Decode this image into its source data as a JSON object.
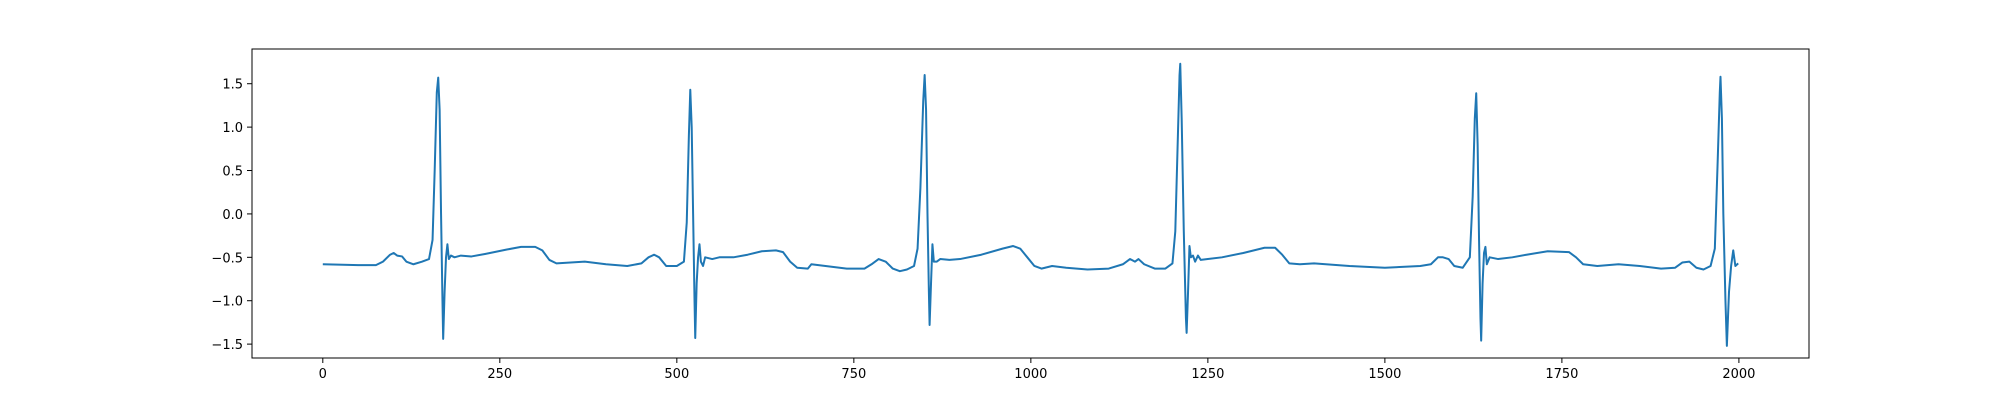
{
  "chart_data": {
    "type": "line",
    "x": [
      0,
      50,
      75,
      85,
      95,
      100,
      105,
      112,
      118,
      128,
      140,
      150,
      155,
      158,
      161,
      163,
      165,
      167,
      169,
      170,
      172,
      174,
      176,
      178,
      181,
      186,
      195,
      210,
      230,
      260,
      280,
      300,
      310,
      320,
      330,
      350,
      370,
      400,
      430,
      450,
      460,
      468,
      475,
      485,
      500,
      510,
      514,
      517,
      519,
      521,
      523,
      525,
      526,
      528,
      530,
      532,
      534,
      537,
      540,
      550,
      560,
      580,
      600,
      620,
      640,
      650,
      660,
      670,
      685,
      690,
      710,
      740,
      765,
      775,
      785,
      795,
      805,
      815,
      825,
      835,
      840,
      844,
      848,
      850,
      852,
      854,
      856,
      857,
      859,
      861,
      863,
      867,
      872,
      885,
      900,
      930,
      960,
      975,
      985,
      995,
      1005,
      1015,
      1030,
      1050,
      1080,
      1110,
      1130,
      1140,
      1147,
      1152,
      1160,
      1175,
      1190,
      1200,
      1204,
      1207,
      1210,
      1211,
      1213,
      1216,
      1219,
      1220,
      1222,
      1224,
      1226,
      1229,
      1232,
      1236,
      1240,
      1250,
      1270,
      1300,
      1330,
      1345,
      1355,
      1365,
      1380,
      1400,
      1450,
      1500,
      1550,
      1565,
      1575,
      1582,
      1590,
      1598,
      1610,
      1620,
      1624,
      1627,
      1629,
      1631,
      1633,
      1635,
      1636,
      1638,
      1640,
      1642,
      1644,
      1648,
      1660,
      1680,
      1700,
      1730,
      1760,
      1770,
      1780,
      1800,
      1830,
      1860,
      1890,
      1910,
      1920,
      1930,
      1940,
      1950,
      1960,
      1966,
      1970,
      1973,
      1974,
      1976,
      1978,
      1981,
      1983,
      1986,
      1989,
      1992,
      1995,
      1999
    ],
    "series": [
      {
        "color": "#1f77b4",
        "values": [
          -0.58,
          -0.59,
          -0.59,
          -0.55,
          -0.47,
          -0.45,
          -0.48,
          -0.49,
          -0.55,
          -0.58,
          -0.55,
          -0.52,
          -0.3,
          0.5,
          1.4,
          1.57,
          1.2,
          0.0,
          -1.0,
          -1.44,
          -0.9,
          -0.5,
          -0.35,
          -0.52,
          -0.48,
          -0.5,
          -0.48,
          -0.49,
          -0.46,
          -0.41,
          -0.38,
          -0.38,
          -0.42,
          -0.53,
          -0.57,
          -0.56,
          -0.55,
          -0.58,
          -0.6,
          -0.57,
          -0.5,
          -0.47,
          -0.5,
          -0.6,
          -0.6,
          -0.55,
          -0.1,
          0.9,
          1.43,
          1.0,
          0.0,
          -1.0,
          -1.43,
          -0.8,
          -0.5,
          -0.35,
          -0.55,
          -0.6,
          -0.5,
          -0.52,
          -0.5,
          -0.5,
          -0.47,
          -0.43,
          -0.42,
          -0.44,
          -0.55,
          -0.62,
          -0.63,
          -0.58,
          -0.6,
          -0.63,
          -0.63,
          -0.58,
          -0.52,
          -0.55,
          -0.63,
          -0.66,
          -0.64,
          -0.6,
          -0.4,
          0.3,
          1.3,
          1.6,
          1.2,
          0.0,
          -0.9,
          -1.28,
          -0.8,
          -0.35,
          -0.55,
          -0.55,
          -0.52,
          -0.53,
          -0.52,
          -0.47,
          -0.4,
          -0.37,
          -0.4,
          -0.5,
          -0.6,
          -0.63,
          -0.6,
          -0.62,
          -0.64,
          -0.63,
          -0.58,
          -0.52,
          -0.55,
          -0.52,
          -0.58,
          -0.63,
          -0.63,
          -0.57,
          -0.2,
          0.7,
          1.6,
          1.73,
          1.1,
          -0.2,
          -1.2,
          -1.37,
          -0.9,
          -0.37,
          -0.5,
          -0.48,
          -0.55,
          -0.48,
          -0.53,
          -0.52,
          -0.5,
          -0.45,
          -0.39,
          -0.39,
          -0.47,
          -0.57,
          -0.58,
          -0.57,
          -0.6,
          -0.62,
          -0.6,
          -0.58,
          -0.5,
          -0.5,
          -0.52,
          -0.6,
          -0.62,
          -0.5,
          0.2,
          1.1,
          1.39,
          0.8,
          -0.3,
          -1.2,
          -1.46,
          -0.8,
          -0.45,
          -0.38,
          -0.58,
          -0.5,
          -0.52,
          -0.5,
          -0.47,
          -0.43,
          -0.44,
          -0.5,
          -0.58,
          -0.6,
          -0.58,
          -0.6,
          -0.63,
          -0.62,
          -0.56,
          -0.55,
          -0.62,
          -0.64,
          -0.6,
          -0.4,
          0.6,
          1.4,
          1.58,
          1.1,
          0.0,
          -1.0,
          -1.52,
          -0.9,
          -0.6,
          -0.42,
          -0.6,
          -0.57
        ]
      }
    ],
    "xlim": [
      -100,
      2099
    ],
    "ylim": [
      -1.66,
      1.9
    ],
    "xticks": [
      0,
      250,
      500,
      750,
      1000,
      1250,
      1500,
      1750,
      2000
    ],
    "yticks": [
      {
        "value": -1.5,
        "label": "−1.5"
      },
      {
        "value": -1.0,
        "label": "−1.0"
      },
      {
        "value": -0.5,
        "label": "−0.5"
      },
      {
        "value": 0,
        "label": "0.0"
      },
      {
        "value": 0.5,
        "label": "0.5"
      },
      {
        "value": 1.0,
        "label": "1.0"
      },
      {
        "value": 1.5,
        "label": "1.5"
      }
    ]
  }
}
